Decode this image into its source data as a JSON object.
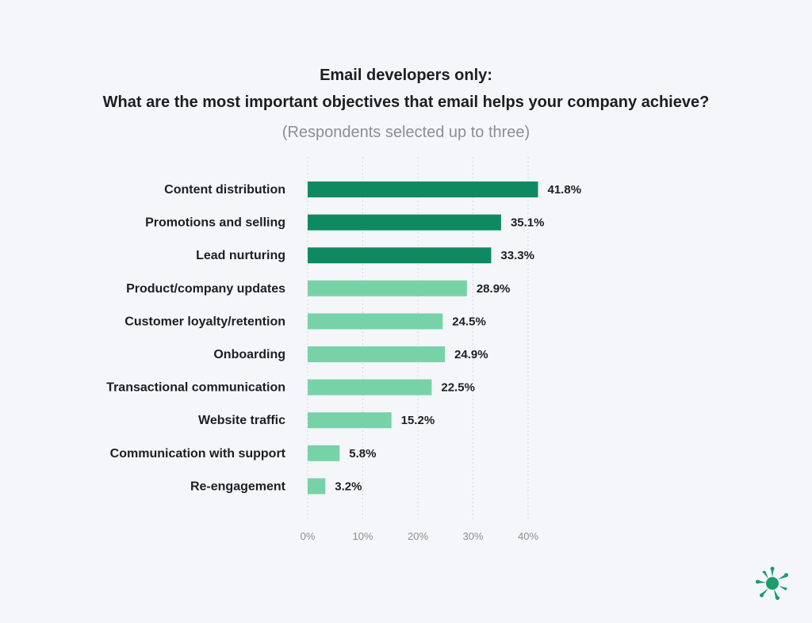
{
  "title_line1": "Email developers only:",
  "title_line2": "What are the most important objectives that email helps your company achieve?",
  "subtitle": "(Respondents selected up to three)",
  "colors": {
    "dark_green": "#0f8a60",
    "light_green": "#78d2a7",
    "background": "#f4f6fa",
    "grid": "#d4d8de"
  },
  "chart_data": {
    "type": "bar",
    "orientation": "horizontal",
    "categories": [
      "Content distribution",
      "Promotions and selling",
      "Lead nurturing",
      "Product/company updates",
      "Customer loyalty/retention",
      "Onboarding",
      "Transactional communication",
      "Website traffic",
      "Communication with support",
      "Re-engagement"
    ],
    "values": [
      41.8,
      35.1,
      33.3,
      28.9,
      24.5,
      24.9,
      22.5,
      15.2,
      5.8,
      3.2
    ],
    "value_labels": [
      "41.8%",
      "35.1%",
      "33.3%",
      "28.9%",
      "24.5%",
      "24.9%",
      "22.5%",
      "15.2%",
      "5.8%",
      "3.2%"
    ],
    "highlight_top_n": 3,
    "xlim": [
      0,
      40
    ],
    "xticks": [
      0,
      10,
      20,
      30,
      40
    ],
    "xtick_labels": [
      "0%",
      "10%",
      "20%",
      "30%",
      "40%"
    ],
    "grid": true,
    "legend": "none"
  },
  "logo_icon": "splat-logo-icon"
}
